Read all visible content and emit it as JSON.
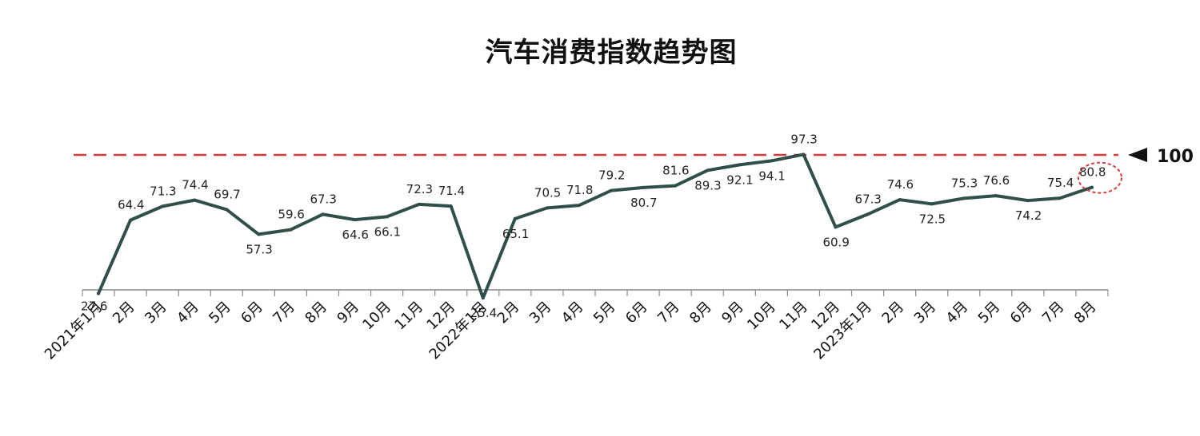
{
  "chart_data": {
    "type": "line",
    "title": "汽车消费指数趋势图",
    "categories": [
      "2021年1月",
      "2月",
      "3月",
      "4月",
      "5月",
      "6月",
      "7月",
      "8月",
      "9月",
      "10月",
      "11月",
      "12月",
      "2022年1月",
      "2月",
      "3月",
      "4月",
      "5月",
      "6月",
      "7月",
      "8月",
      "9月",
      "10月",
      "11月",
      "12月",
      "2023年1月",
      "2月",
      "3月",
      "4月",
      "5月",
      "6月",
      "7月",
      "8月"
    ],
    "series": [
      {
        "values": [
          27.6,
          64.4,
          71.3,
          74.4,
          69.7,
          57.3,
          59.6,
          67.3,
          64.6,
          66.1,
          72.3,
          71.4,
          25.4,
          65.1,
          70.5,
          71.8,
          79.2,
          80.7,
          81.6,
          89.3,
          92.1,
          94.1,
          97.3,
          60.9,
          67.3,
          74.6,
          72.5,
          75.3,
          76.6,
          74.2,
          75.4,
          80.8
        ]
      }
    ],
    "label_position": [
      "below",
      "above",
      "above",
      "above",
      "above",
      "below",
      "above",
      "above",
      "below",
      "below",
      "above",
      "above",
      "below",
      "below",
      "above",
      "above",
      "above",
      "below",
      "above",
      "below",
      "below",
      "below",
      "above",
      "below",
      "above",
      "above",
      "below",
      "above",
      "above",
      "below",
      "above",
      "above"
    ],
    "reference_line": {
      "value": 100,
      "label": "100",
      "color": "#d93a3a",
      "style": "dashed"
    },
    "highlight_index": 31,
    "line_color": "#2f4f4a",
    "xlabel": "",
    "ylabel": ""
  }
}
